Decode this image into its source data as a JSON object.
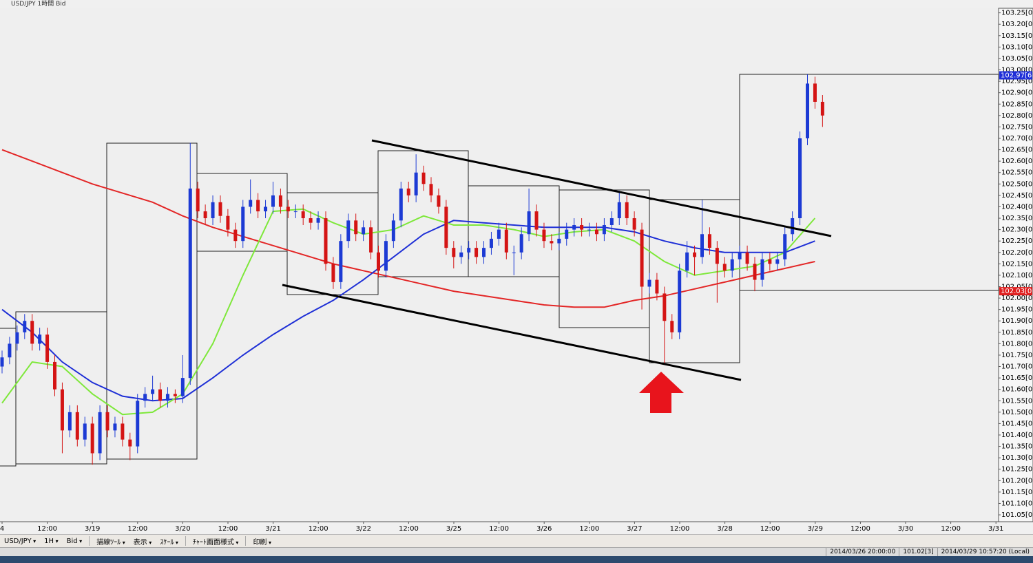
{
  "window": {
    "title": "USD/JPY 1時間 Bid"
  },
  "chart_data": {
    "type": "candlestick",
    "open": [
      101.7,
      101.74,
      101.8,
      101.85,
      101.9,
      101.8,
      101.84,
      101.72,
      101.6,
      101.42,
      101.5,
      101.38,
      101.45,
      101.32,
      101.5,
      101.42,
      101.45,
      101.38,
      101.35,
      101.55,
      101.58,
      101.6,
      101.55,
      101.58,
      101.57,
      101.65,
      102.48,
      102.38,
      102.35,
      102.42,
      102.36,
      102.3,
      102.25,
      102.4,
      102.43,
      102.38,
      102.4,
      102.45,
      102.4,
      102.38,
      102.38,
      102.35,
      102.33,
      102.35,
      102.15,
      102.07,
      102.25,
      102.34,
      102.28,
      102.31,
      102.2,
      102.12,
      102.25,
      102.34,
      102.48,
      102.45,
      102.55,
      102.5,
      102.45,
      102.4,
      102.22,
      102.18,
      102.2,
      102.22,
      102.18,
      102.22,
      102.26,
      102.3,
      102.2,
      102.2,
      102.28,
      102.38,
      102.3,
      102.25,
      102.24,
      102.26,
      102.3,
      102.32,
      102.3,
      102.3,
      102.28,
      102.32,
      102.35,
      102.42,
      102.35,
      102.3,
      102.05,
      102.08,
      102.02,
      101.9,
      101.85,
      102.12,
      102.2,
      102.18,
      102.28,
      102.22,
      102.15,
      102.12,
      102.17,
      102.2,
      102.15,
      102.08,
      102.17,
      102.15,
      102.17,
      102.28,
      102.35,
      102.7,
      102.94,
      102.86
    ],
    "high": [
      101.77,
      101.83,
      101.88,
      101.93,
      101.93,
      101.87,
      101.87,
      101.75,
      101.63,
      101.53,
      101.53,
      101.48,
      101.48,
      101.53,
      101.53,
      101.48,
      101.48,
      101.41,
      101.58,
      101.61,
      101.66,
      101.63,
      101.61,
      101.6,
      101.75,
      102.68,
      102.51,
      102.41,
      102.45,
      102.45,
      102.39,
      102.33,
      102.43,
      102.52,
      102.46,
      102.43,
      102.51,
      102.48,
      102.43,
      102.41,
      102.41,
      102.38,
      102.38,
      102.38,
      102.18,
      102.28,
      102.37,
      102.37,
      102.34,
      102.34,
      102.23,
      102.28,
      102.37,
      102.51,
      102.51,
      102.63,
      102.58,
      102.53,
      102.48,
      102.43,
      102.25,
      102.23,
      102.25,
      102.25,
      102.25,
      102.29,
      102.33,
      102.33,
      102.23,
      102.31,
      102.48,
      102.41,
      102.33,
      102.28,
      102.29,
      102.33,
      102.35,
      102.35,
      102.33,
      102.33,
      102.35,
      102.38,
      102.47,
      102.45,
      102.38,
      102.33,
      102.11,
      102.11,
      102.05,
      101.93,
      102.15,
      102.25,
      102.23,
      102.43,
      102.31,
      102.25,
      102.18,
      102.2,
      102.23,
      102.23,
      102.18,
      102.2,
      102.2,
      102.2,
      102.31,
      102.38,
      102.73,
      102.98,
      102.97,
      102.89
    ],
    "low": [
      101.67,
      101.71,
      101.77,
      101.82,
      101.77,
      101.77,
      101.69,
      101.57,
      101.32,
      101.39,
      101.35,
      101.35,
      101.27,
      101.29,
      101.39,
      101.39,
      101.35,
      101.29,
      101.32,
      101.52,
      101.55,
      101.52,
      101.52,
      101.54,
      101.54,
      101.62,
      102.35,
      102.32,
      102.32,
      102.33,
      102.27,
      102.22,
      102.22,
      102.37,
      102.35,
      102.35,
      102.37,
      102.37,
      102.35,
      102.35,
      102.32,
      102.3,
      102.3,
      102.12,
      102.04,
      102.04,
      102.22,
      102.25,
      102.25,
      102.17,
      102.09,
      102.09,
      102.22,
      102.31,
      102.42,
      102.42,
      102.47,
      102.42,
      102.37,
      102.19,
      102.13,
      102.15,
      102.17,
      102.15,
      102.15,
      102.19,
      102.23,
      102.17,
      102.1,
      102.17,
      102.25,
      102.27,
      102.22,
      102.21,
      102.21,
      102.23,
      102.27,
      102.27,
      102.27,
      102.25,
      102.25,
      102.29,
      102.32,
      102.32,
      102.27,
      101.95,
      102.02,
      101.99,
      101.71,
      101.82,
      101.82,
      102.09,
      102.1,
      102.15,
      102.19,
      101.98,
      102.09,
      102.09,
      102.14,
      102.12,
      102.03,
      102.05,
      102.12,
      102.12,
      102.14,
      102.25,
      102.32,
      102.67,
      102.83,
      102.75
    ],
    "close": [
      101.74,
      101.8,
      101.85,
      101.9,
      101.8,
      101.84,
      101.72,
      101.6,
      101.42,
      101.5,
      101.38,
      101.45,
      101.32,
      101.5,
      101.42,
      101.45,
      101.38,
      101.35,
      101.55,
      101.58,
      101.6,
      101.55,
      101.58,
      101.57,
      101.65,
      102.48,
      102.38,
      102.35,
      102.42,
      102.36,
      102.3,
      102.25,
      102.4,
      102.43,
      102.38,
      102.4,
      102.45,
      102.4,
      102.38,
      102.38,
      102.35,
      102.33,
      102.35,
      102.15,
      102.07,
      102.25,
      102.34,
      102.28,
      102.31,
      102.2,
      102.12,
      102.25,
      102.34,
      102.48,
      102.45,
      102.55,
      102.5,
      102.45,
      102.4,
      102.22,
      102.18,
      102.2,
      102.22,
      102.18,
      102.22,
      102.26,
      102.3,
      102.2,
      102.2,
      102.28,
      102.38,
      102.3,
      102.25,
      102.24,
      102.26,
      102.3,
      102.32,
      102.3,
      102.3,
      102.28,
      102.32,
      102.35,
      102.42,
      102.35,
      102.3,
      102.05,
      102.08,
      102.02,
      101.9,
      101.85,
      102.12,
      102.2,
      102.18,
      102.28,
      102.22,
      102.15,
      102.12,
      102.17,
      102.2,
      102.15,
      102.08,
      102.17,
      102.15,
      102.17,
      102.28,
      102.35,
      102.7,
      102.94,
      102.86,
      102.8
    ],
    "up_color": "#1c3ad4",
    "down_color": "#d41414",
    "ylim": [
      101.02,
      103.27
    ],
    "yticks": [
      {
        "value": 103.25,
        "label": "103.25[0]"
      },
      {
        "value": 103.2,
        "label": "103.20[0]"
      },
      {
        "value": 103.15,
        "label": "103.15[0]"
      },
      {
        "value": 103.1,
        "label": "103.10[0]"
      },
      {
        "value": 103.05,
        "label": "103.05[0]"
      },
      {
        "value": 103.0,
        "label": "103.00[0]"
      },
      {
        "value": 102.95,
        "label": "102.95[0]"
      },
      {
        "value": 102.9,
        "label": "102.90[0]"
      },
      {
        "value": 102.85,
        "label": "102.85[0]"
      },
      {
        "value": 102.8,
        "label": "102.80[0]"
      },
      {
        "value": 102.75,
        "label": "102.75[0]"
      },
      {
        "value": 102.7,
        "label": "102.70[0]"
      },
      {
        "value": 102.65,
        "label": "102.65[0]"
      },
      {
        "value": 102.6,
        "label": "102.60[0]"
      },
      {
        "value": 102.55,
        "label": "102.55[0]"
      },
      {
        "value": 102.5,
        "label": "102.50[0]"
      },
      {
        "value": 102.45,
        "label": "102.45[0]"
      },
      {
        "value": 102.4,
        "label": "102.40[0]"
      },
      {
        "value": 102.35,
        "label": "102.35[0]"
      },
      {
        "value": 102.3,
        "label": "102.30[0]"
      },
      {
        "value": 102.25,
        "label": "102.25[0]"
      },
      {
        "value": 102.2,
        "label": "102.20[0]"
      },
      {
        "value": 102.15,
        "label": "102.15[0]"
      },
      {
        "value": 102.1,
        "label": "102.10[0]"
      },
      {
        "value": 102.05,
        "label": "102.05[0]"
      },
      {
        "value": 102.0,
        "label": "102.00[0]"
      },
      {
        "value": 101.95,
        "label": "101.95[0]"
      },
      {
        "value": 101.9,
        "label": "101.90[0]"
      },
      {
        "value": 101.85,
        "label": "101.85[0]"
      },
      {
        "value": 101.8,
        "label": "101.80[0]"
      },
      {
        "value": 101.75,
        "label": "101.75[0]"
      },
      {
        "value": 101.7,
        "label": "101.70[0]"
      },
      {
        "value": 101.65,
        "label": "101.65[0]"
      },
      {
        "value": 101.6,
        "label": "101.60[0]"
      },
      {
        "value": 101.55,
        "label": "101.55[0]"
      },
      {
        "value": 101.5,
        "label": "101.50[0]"
      },
      {
        "value": 101.45,
        "label": "101.45[0]"
      },
      {
        "value": 101.4,
        "label": "101.40[0]"
      },
      {
        "value": 101.35,
        "label": "101.35[0]"
      },
      {
        "value": 101.3,
        "label": "101.30[0]"
      },
      {
        "value": 101.25,
        "label": "101.25[0]"
      },
      {
        "value": 101.2,
        "label": "101.20[0]"
      },
      {
        "value": 101.15,
        "label": "101.15[0]"
      },
      {
        "value": 101.1,
        "label": "101.10[0]"
      },
      {
        "value": 101.05,
        "label": "101.05[0]"
      }
    ],
    "x_labels": [
      "4",
      "12:00",
      "3/19",
      "12:00",
      "3/20",
      "12:00",
      "3/21",
      "12:00",
      "3/22",
      "12:00",
      "3/25",
      "12:00",
      "3/26",
      "12:00",
      "3/27",
      "12:00",
      "3/28",
      "12:00",
      "3/29",
      "12:00",
      "3/30",
      "12:00",
      "3/31"
    ],
    "moving_averages": {
      "x": [
        0,
        4,
        8,
        12,
        16,
        20,
        24,
        28,
        32,
        36,
        40,
        44,
        48,
        52,
        56,
        60,
        64,
        68,
        72,
        76,
        80,
        84,
        88,
        92,
        96,
        100,
        104,
        108
      ],
      "series": [
        {
          "color": "#e32626",
          "values": [
            102.65,
            102.6,
            102.55,
            102.5,
            102.46,
            102.42,
            102.36,
            102.31,
            102.27,
            102.23,
            102.19,
            102.15,
            102.12,
            102.09,
            102.06,
            102.03,
            102.01,
            101.99,
            101.97,
            101.96,
            101.96,
            101.99,
            102.01,
            102.04,
            102.07,
            102.1,
            102.13,
            102.16
          ]
        },
        {
          "color": "#1e2fd6",
          "values": [
            101.95,
            101.85,
            101.72,
            101.63,
            101.57,
            101.55,
            101.56,
            101.65,
            101.75,
            101.84,
            101.92,
            101.99,
            102.08,
            102.18,
            102.28,
            102.34,
            102.33,
            102.32,
            102.31,
            102.31,
            102.31,
            102.29,
            102.25,
            102.22,
            102.2,
            102.2,
            102.2,
            102.25
          ]
        },
        {
          "color": "#7ee83a",
          "values": [
            101.54,
            101.72,
            101.7,
            101.58,
            101.49,
            101.5,
            101.58,
            101.8,
            102.1,
            102.38,
            102.39,
            102.33,
            102.28,
            102.3,
            102.36,
            102.32,
            102.32,
            102.3,
            102.27,
            102.29,
            102.3,
            102.25,
            102.16,
            102.1,
            102.12,
            102.14,
            102.2,
            102.35
          ]
        }
      ]
    },
    "price_markers": [
      {
        "label": "102.97[6",
        "value": 102.976,
        "color": "#1f2fd8"
      },
      {
        "label": "102.03[0",
        "value": 102.03,
        "color": "#e02020"
      }
    ]
  },
  "toolbar": {
    "items": [
      "USD/JPY",
      "1H",
      "Bid",
      "描線ﾂｰﾙ",
      "表示",
      "ｽｹｰﾙ",
      "ﾁｬｰﾄ画面様式",
      "印刷"
    ]
  },
  "status_bar": {
    "cursor_time": "2014/03/26 20:00:00",
    "cursor_price": "101.02[3]",
    "local_time": "2014/03/29 10:57:20 (Local)"
  }
}
